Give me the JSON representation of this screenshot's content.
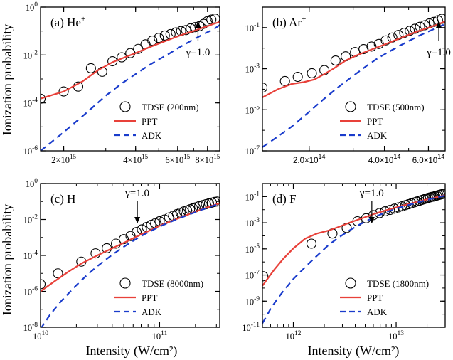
{
  "figure": {
    "ylabel": "Ionization probability",
    "xlabel": "Intensity (W/cm²)"
  },
  "colors": {
    "tdse": "#000000",
    "ppt": "#e8413a",
    "adk": "#1a3ccc"
  },
  "chart_data": [
    {
      "type": "line",
      "panel_label": "(a)",
      "target": "He",
      "charge": "+",
      "xscale": "log",
      "yscale": "log",
      "xlim": [
        1600000000000000.0,
        9000000000000000.0
      ],
      "ylim": [
        1e-06,
        1
      ],
      "yticks": [
        "10",
        "10",
        "10",
        "10"
      ],
      "yticks_exp": [
        "0",
        "-2",
        "-4",
        "-6"
      ],
      "ytick_values": [
        1,
        0.01,
        0.0001,
        1e-06
      ],
      "xticks": [
        {
          "mant": "2",
          "exp": "15",
          "value": 2000000000000000.0
        },
        {
          "mant": "4",
          "exp": "15",
          "value": 4000000000000000.0
        },
        {
          "mant": "6",
          "exp": "15",
          "value": 6000000000000000.0
        },
        {
          "mant": "8",
          "exp": "15",
          "value": 8000000000000000.0
        }
      ],
      "xtick_style": "mantissa",
      "annotation": {
        "text": "γ=1.0",
        "x": 7300000000000000.0
      },
      "legend": {
        "position": "lower-right",
        "tdse": "TDSE (200nm)",
        "ppt": "PPT",
        "adk": "ADK"
      },
      "series": [
        {
          "name": "TDSE (200nm)",
          "style": "circles",
          "x": [
            1600000000000000.0,
            2000000000000000.0,
            2300000000000000.0,
            2600000000000000.0,
            2900000000000000.0,
            3200000000000000.0,
            3500000000000000.0,
            3800000000000000.0,
            4100000000000000.0,
            4400000000000000.0,
            4700000000000000.0,
            5000000000000000.0,
            5300000000000000.0,
            5600000000000000.0,
            5900000000000000.0,
            6200000000000000.0,
            6500000000000000.0,
            6800000000000000.0,
            7100000000000000.0,
            7400000000000000.0,
            7700000000000000.0,
            8000000000000000.0,
            8300000000000000.0,
            8600000000000000.0
          ],
          "y": [
            0.00015,
            0.0003,
            0.00048,
            0.0028,
            0.002,
            0.0055,
            0.008,
            0.012,
            0.018,
            0.028,
            0.04,
            0.052,
            0.065,
            0.075,
            0.088,
            0.1,
            0.11,
            0.13,
            0.145,
            0.16,
            0.2,
            0.26,
            0.3,
            0.33
          ]
        },
        {
          "name": "PPT",
          "style": "solid",
          "x": [
            1600000000000000.0,
            2000000000000000.0,
            2400000000000000.0,
            2800000000000000.0,
            3200000000000000.0,
            3600000000000000.0,
            4000000000000000.0,
            4500000000000000.0,
            5000000000000000.0,
            5500000000000000.0,
            6000000000000000.0,
            6500000000000000.0,
            7000000000000000.0,
            7500000000000000.0,
            8000000000000000.0,
            8500000000000000.0,
            9000000000000000.0
          ],
          "y": [
            0.00015,
            0.0003,
            0.0008,
            0.0024,
            0.005,
            0.008,
            0.012,
            0.02,
            0.03,
            0.043,
            0.06,
            0.08,
            0.1,
            0.13,
            0.16,
            0.2,
            0.24
          ]
        },
        {
          "name": "ADK",
          "style": "dashed",
          "x": [
            1600000000000000.0,
            2000000000000000.0,
            2500000000000000.0,
            3000000000000000.0,
            3500000000000000.0,
            4000000000000000.0,
            4500000000000000.0,
            5000000000000000.0,
            5500000000000000.0,
            6000000000000000.0,
            6500000000000000.0,
            7000000000000000.0,
            7500000000000000.0,
            8000000000000000.0,
            8500000000000000.0,
            9000000000000000.0
          ],
          "y": [
            1e-06,
            6e-06,
            4e-05,
            0.0002,
            0.00065,
            0.0016,
            0.0035,
            0.0065,
            0.011,
            0.019,
            0.03,
            0.045,
            0.065,
            0.09,
            0.12,
            0.18
          ]
        }
      ]
    },
    {
      "type": "line",
      "panel_label": "(b)",
      "target": "Ar",
      "charge": "+",
      "xscale": "log",
      "yscale": "log",
      "xlim": [
        130000000000000.0,
        700000000000000.0
      ],
      "ylim": [
        1e-07,
        1
      ],
      "yticks": [
        "10",
        "10",
        "10",
        "10"
      ],
      "yticks_exp": [
        "-1",
        "-3",
        "-5",
        "-7"
      ],
      "ytick_values": [
        0.1,
        0.001,
        1e-05,
        1e-07
      ],
      "xticks": [
        {
          "mant": "2.0",
          "exp": "14",
          "value": 200000000000000.0
        },
        {
          "mant": "4.0",
          "exp": "14",
          "value": 400000000000000.0
        },
        {
          "mant": "6.0",
          "exp": "14",
          "value": 600000000000000.0
        }
      ],
      "xtick_style": "mantissa-sans",
      "annotation": {
        "text": "γ=1.0",
        "x": 660000000000000.0
      },
      "legend": {
        "position": "lower-right",
        "tdse": "TDSE (500nm)",
        "ppt": "PPT",
        "adk": "ADK"
      },
      "series": [
        {
          "name": "TDSE (500nm)",
          "style": "circles",
          "x": [
            130000000000000.0,
            160000000000000.0,
            180000000000000.0,
            205000000000000.0,
            230000000000000.0,
            255000000000000.0,
            280000000000000.0,
            305000000000000.0,
            330000000000000.0,
            355000000000000.0,
            380000000000000.0,
            405000000000000.0,
            430000000000000.0,
            455000000000000.0,
            480000000000000.0,
            505000000000000.0,
            530000000000000.0,
            555000000000000.0,
            580000000000000.0,
            605000000000000.0,
            630000000000000.0,
            655000000000000.0,
            680000000000000.0
          ],
          "y": [
            0.00012,
            0.00025,
            0.0004,
            0.0006,
            0.00085,
            0.0025,
            0.004,
            0.0065,
            0.009,
            0.012,
            0.016,
            0.024,
            0.033,
            0.044,
            0.056,
            0.07,
            0.088,
            0.11,
            0.13,
            0.16,
            0.19,
            0.23,
            0.27
          ]
        },
        {
          "name": "PPT",
          "style": "solid",
          "x": [
            130000000000000.0,
            150000000000000.0,
            170000000000000.0,
            190000000000000.0,
            210000000000000.0,
            230000000000000.0,
            250000000000000.0,
            280000000000000.0,
            310000000000000.0,
            350000000000000.0,
            400000000000000.0,
            450000000000000.0,
            500000000000000.0,
            550000000000000.0,
            600000000000000.0,
            650000000000000.0,
            700000000000000.0
          ],
          "y": [
            4e-05,
            0.0001,
            0.00018,
            0.00022,
            0.0003,
            0.00055,
            0.001,
            0.0025,
            0.0045,
            0.008,
            0.015,
            0.027,
            0.045,
            0.07,
            0.1,
            0.14,
            0.2
          ]
        },
        {
          "name": "ADK",
          "style": "dashed",
          "x": [
            130000000000000.0,
            150000000000000.0,
            170000000000000.0,
            200000000000000.0,
            230000000000000.0,
            260000000000000.0,
            300000000000000.0,
            340000000000000.0,
            380000000000000.0,
            420000000000000.0,
            460000000000000.0,
            500000000000000.0,
            550000000000000.0,
            600000000000000.0,
            650000000000000.0,
            700000000000000.0
          ],
          "y": [
            1.5e-07,
            5e-07,
            1.5e-06,
            8e-06,
            3.5e-05,
            0.00012,
            0.00045,
            0.0014,
            0.0035,
            0.007,
            0.013,
            0.022,
            0.04,
            0.065,
            0.1,
            0.15
          ]
        }
      ]
    },
    {
      "type": "line",
      "panel_label": "(c)",
      "target": "H",
      "charge": "-",
      "xscale": "log",
      "yscale": "log",
      "xlim": [
        10000000000.0,
        320000000000.0
      ],
      "ylim": [
        1e-08,
        1
      ],
      "yticks": [
        "10",
        "10",
        "10",
        "10",
        "10"
      ],
      "yticks_exp": [
        "0",
        "-2",
        "-4",
        "-6",
        "-8"
      ],
      "ytick_values": [
        1,
        0.01,
        0.0001,
        1e-06,
        1e-08
      ],
      "xticks": [
        {
          "mant": "10",
          "exp": "10",
          "value": 10000000000.0
        },
        {
          "mant": "10",
          "exp": "11",
          "value": 100000000000.0
        }
      ],
      "xtick_style": "power",
      "annotation": {
        "text": "γ=1.0",
        "x": 65000000000.0
      },
      "legend": {
        "position": "lower-right",
        "tdse": "TDSE (8000nm)",
        "ppt": "PPT",
        "adk": "ADK"
      },
      "series": [
        {
          "name": "TDSE (8000nm)",
          "style": "circles",
          "x": [
            10000000000.0,
            14000000000.0,
            22000000000.0,
            29000000000.0,
            36000000000.0,
            43000000000.0,
            50000000000.0,
            57000000000.0,
            64000000000.0,
            71000000000.0,
            78000000000.0,
            85000000000.0,
            92000000000.0,
            100000000000.0,
            110000000000.0,
            120000000000.0,
            130000000000.0,
            140000000000.0,
            150000000000.0,
            160000000000.0,
            170000000000.0,
            180000000000.0,
            190000000000.0,
            200000000000.0,
            215000000000.0,
            230000000000.0,
            245000000000.0,
            260000000000.0,
            275000000000.0,
            290000000000.0,
            305000000000.0
          ],
          "y": [
            2.5e-06,
            1e-05,
            4.5e-05,
            0.00013,
            0.00025,
            0.00045,
            0.0008,
            0.0012,
            0.002,
            0.0028,
            0.0038,
            0.005,
            0.0062,
            0.008,
            0.01,
            0.013,
            0.016,
            0.02,
            0.024,
            0.028,
            0.032,
            0.037,
            0.042,
            0.047,
            0.055,
            0.063,
            0.071,
            0.079,
            0.087,
            0.095,
            0.1
          ]
        },
        {
          "name": "PPT",
          "style": "solid",
          "x": [
            10000000000.0,
            13000000000.0,
            17000000000.0,
            22000000000.0,
            30000000000.0,
            40000000000.0,
            50000000000.0,
            60000000000.0,
            70000000000.0,
            80000000000.0,
            100000000000.0,
            130000000000.0,
            170000000000.0,
            220000000000.0,
            270000000000.0,
            320000000000.0
          ],
          "y": [
            1e-06,
            3.5e-06,
            1.2e-05,
            3.5e-05,
            0.0001,
            0.00025,
            0.0005,
            0.0009,
            0.0015,
            0.0022,
            0.0045,
            0.009,
            0.018,
            0.035,
            0.055,
            0.08
          ]
        },
        {
          "name": "ADK",
          "style": "dashed",
          "x": [
            10000000000.0,
            12000000000.0,
            15000000000.0,
            20000000000.0,
            25000000000.0,
            30000000000.0,
            40000000000.0,
            50000000000.0,
            60000000000.0,
            70000000000.0,
            80000000000.0,
            100000000000.0,
            130000000000.0,
            170000000000.0,
            220000000000.0,
            270000000000.0,
            320000000000.0
          ],
          "y": [
            8e-09,
            5e-08,
            3e-07,
            2.2e-06,
            9e-06,
            2.5e-05,
            0.00011,
            0.0003,
            0.00065,
            0.0012,
            0.0019,
            0.004,
            0.0085,
            0.017,
            0.033,
            0.052,
            0.075
          ]
        }
      ]
    },
    {
      "type": "line",
      "panel_label": "(d)",
      "target": "F",
      "charge": "-",
      "xscale": "log",
      "yscale": "log",
      "xlim": [
        500000000000.0,
        30000000000000.0
      ],
      "ylim": [
        1e-11,
        1
      ],
      "yticks": [
        "10",
        "10",
        "10",
        "10",
        "10",
        "10"
      ],
      "yticks_exp": [
        "-1",
        "-3",
        "-5",
        "-7",
        "-9",
        "-11"
      ],
      "ytick_values": [
        0.1,
        0.001,
        1e-05,
        1e-07,
        1e-09,
        1e-11
      ],
      "xticks": [
        {
          "mant": "10",
          "exp": "12",
          "value": 1000000000000.0
        },
        {
          "mant": "10",
          "exp": "13",
          "value": 10000000000000.0
        }
      ],
      "xtick_style": "power",
      "annotation": {
        "text": "γ=1.0",
        "x": 5800000000000.0
      },
      "legend": {
        "position": "lower-right",
        "tdse": "TDSE (1800nm)",
        "ppt": "PPT",
        "adk": "ADK"
      },
      "series": [
        {
          "name": "TDSE (1800nm)",
          "style": "circles",
          "x": [
            510000000000.0,
            1500000000000.0,
            2400000000000.0,
            3300000000000.0,
            4200000000000.0,
            5100000000000.0,
            6000000000000.0,
            6900000000000.0,
            7800000000000.0,
            8700000000000.0,
            9600000000000.0,
            10500000000000.0,
            11400000000000.0,
            12300000000000.0,
            13200000000000.0,
            14100000000000.0,
            15000000000000.0,
            15900000000000.0,
            16800000000000.0,
            17700000000000.0,
            18600000000000.0,
            19500000000000.0,
            20400000000000.0,
            21300000000000.0,
            22200000000000.0,
            23100000000000.0,
            24000000000000.0,
            24900000000000.0,
            25800000000000.0,
            26700000000000.0,
            27600000000000.0,
            28500000000000.0
          ],
          "y": [
            8e-08,
            2.5e-05,
            0.00015,
            0.0004,
            0.0013,
            0.0022,
            0.0038,
            0.0055,
            0.0075,
            0.0095,
            0.012,
            0.015,
            0.018,
            0.022,
            0.026,
            0.031,
            0.036,
            0.042,
            0.048,
            0.055,
            0.062,
            0.07,
            0.078,
            0.086,
            0.095,
            0.1,
            0.11,
            0.12,
            0.13,
            0.14,
            0.15,
            0.16
          ]
        },
        {
          "name": "PPT",
          "style": "solid",
          "x": [
            500000000000.0,
            650000000000.0,
            800000000000.0,
            1000000000000.0,
            1300000000000.0,
            1700000000000.0,
            2200000000000.0,
            2800000000000.0,
            3500000000000.0,
            4500000000000.0,
            6000000000000.0,
            8000000000000.0,
            10000000000000.0,
            14000000000000.0,
            19000000000000.0,
            24000000000000.0,
            30000000000000.0
          ],
          "y": [
            1.5e-08,
            2.5e-07,
            1.8e-06,
            1.1e-05,
            6e-05,
            0.00015,
            0.00025,
            0.0005,
            0.001,
            0.002,
            0.0045,
            0.009,
            0.015,
            0.03,
            0.055,
            0.085,
            0.13
          ]
        },
        {
          "name": "ADK",
          "style": "dashed",
          "x": [
            500000000000.0,
            600000000000.0,
            700000000000.0,
            800000000000.0,
            1000000000000.0,
            1300000000000.0,
            1700000000000.0,
            2200000000000.0,
            2800000000000.0,
            3500000000000.0,
            4500000000000.0,
            6000000000000.0,
            8000000000000.0,
            10000000000000.0,
            14000000000000.0,
            19000000000000.0,
            24000000000000.0,
            30000000000000.0
          ],
          "y": [
            2e-11,
            2.5e-10,
            1.5e-09,
            6e-09,
            5e-08,
            4e-07,
            3e-06,
            2e-05,
            8e-05,
            0.00025,
            0.0008,
            0.0025,
            0.0065,
            0.012,
            0.026,
            0.05,
            0.08,
            0.12
          ]
        }
      ]
    }
  ]
}
